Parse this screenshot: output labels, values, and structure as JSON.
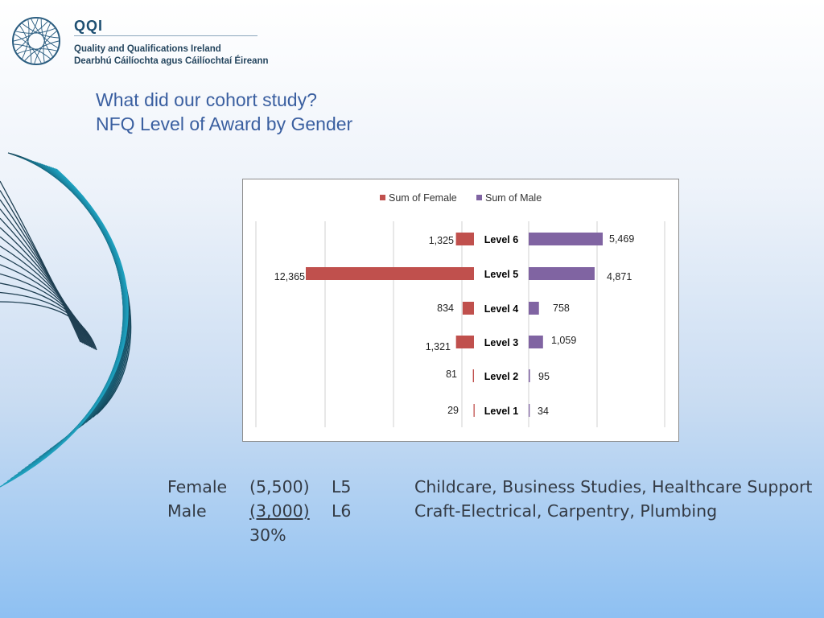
{
  "header": {
    "brand": "QQI",
    "line1": "Quality and Qualifications Ireland",
    "line2": "Dearbhú Cáilíochta agus Cáilíochtaí Éireann"
  },
  "slide": {
    "title_line1": "What did our cohort study?",
    "title_line2": "NFQ Level of Award by Gender"
  },
  "chart_data": {
    "type": "bar",
    "orientation": "horizontal-diverging",
    "categories": [
      "Level 6",
      "Level 5",
      "Level 4",
      "Level 3",
      "Level 2",
      "Level 1"
    ],
    "series": [
      {
        "name": "Sum of Female",
        "color": "#c0504d",
        "values": [
          1325,
          12365,
          834,
          1321,
          81,
          29
        ],
        "labels": [
          "1,325",
          "12,365",
          "834",
          "1,321",
          "81",
          "29"
        ]
      },
      {
        "name": "Sum of Male",
        "color": "#8064a2",
        "values": [
          5469,
          4871,
          758,
          1059,
          95,
          34
        ],
        "labels": [
          "5,469",
          "4,871",
          "758",
          "1,059",
          "95",
          "34"
        ]
      }
    ],
    "legend": "top",
    "grid": true
  },
  "footer": {
    "rows": [
      {
        "gender": "Female",
        "count": "(5,500)",
        "level": "L5",
        "fields": "Childcare, Business Studies, Healthcare Support"
      },
      {
        "gender": "Male",
        "count": "(3,000)",
        "level": "L6",
        "fields": "Craft-Electrical, Carpentry, Plumbing"
      }
    ],
    "percent": "30%"
  }
}
